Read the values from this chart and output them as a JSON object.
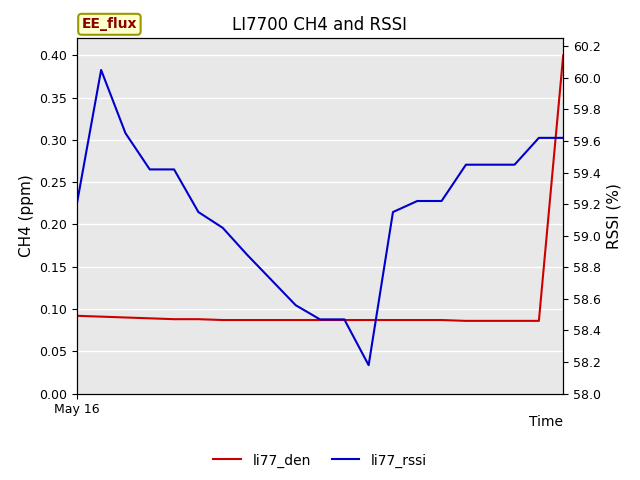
{
  "title": "LI7700 CH4 and RSSI",
  "xlabel": "Time",
  "ylabel_left": "CH4 (ppm)",
  "ylabel_right": "RSSI (%)",
  "annotation_text": "EE_flux",
  "ylim_left": [
    0.0,
    0.42
  ],
  "ylim_right": [
    58.0,
    60.25
  ],
  "x_values": [
    0,
    1,
    2,
    3,
    4,
    5,
    6,
    7,
    8,
    9,
    10,
    11,
    12,
    13,
    14,
    15,
    16,
    17,
    18,
    19,
    20
  ],
  "li77_den": [
    0.092,
    0.091,
    0.09,
    0.089,
    0.088,
    0.088,
    0.087,
    0.087,
    0.087,
    0.087,
    0.087,
    0.087,
    0.087,
    0.087,
    0.087,
    0.087,
    0.086,
    0.086,
    0.086,
    0.086,
    0.4
  ],
  "rssi_raw": [
    59.2,
    60.05,
    59.65,
    59.42,
    59.42,
    59.15,
    59.05,
    58.88,
    58.72,
    58.56,
    58.47,
    58.47,
    58.18,
    59.15,
    59.22,
    59.22,
    59.45,
    59.45,
    59.45,
    59.62,
    59.62
  ],
  "den_color": "#cc0000",
  "rssi_color": "#0000cc",
  "bg_color": "#e8e8e8",
  "grid_color": "white",
  "xtick_label": "May 16",
  "legend_den": "li77_den",
  "legend_rssi": "li77_rssi",
  "yticks_left": [
    0.0,
    0.05,
    0.1,
    0.15,
    0.2,
    0.25,
    0.3,
    0.35,
    0.4
  ],
  "yticks_right": [
    58.0,
    58.2,
    58.4,
    58.6,
    58.8,
    59.0,
    59.2,
    59.4,
    59.6,
    59.8,
    60.0,
    60.2
  ]
}
